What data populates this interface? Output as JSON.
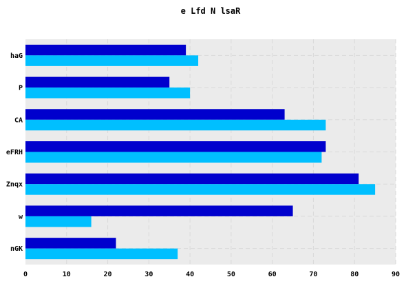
{
  "chart_data": {
    "type": "bar",
    "orientation": "horizontal",
    "title": "e Lfd  N lsaR",
    "xlabel": "",
    "ylabel": "",
    "categories": [
      "haG",
      "P",
      "CA",
      "eFRH",
      "Znqx",
      "w",
      "nGK"
    ],
    "xlim": [
      0,
      90
    ],
    "xticks": [
      0,
      10,
      20,
      30,
      40,
      50,
      60,
      70,
      80,
      90
    ],
    "grid": true,
    "series": [
      {
        "color": "#0000cd",
        "values": [
          39,
          35,
          63,
          73,
          81,
          65,
          22
        ]
      },
      {
        "color": "#00bfff",
        "values": [
          42,
          40,
          73,
          72,
          85,
          16,
          37
        ]
      }
    ]
  },
  "colors": {
    "plot_background": "#ebebeb",
    "grid": "#d9d9d9"
  }
}
